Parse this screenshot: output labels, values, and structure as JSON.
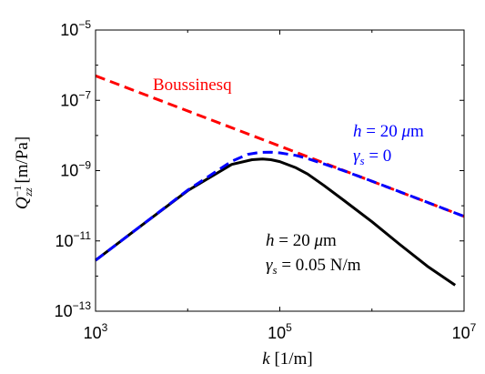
{
  "chart_data": {
    "type": "line",
    "xscale": "log",
    "yscale": "log",
    "xlim": [
      1000,
      10000000
    ],
    "ylim": [
      1e-13,
      1e-05
    ],
    "xticks": [
      {
        "value": 1000,
        "base": "10",
        "exp": "3"
      },
      {
        "value": 100000,
        "base": "10",
        "exp": "5"
      },
      {
        "value": 10000000,
        "base": "10",
        "exp": "7"
      }
    ],
    "yticks": [
      {
        "value": 1e-13,
        "base": "10",
        "exp": "−13"
      },
      {
        "value": 1e-11,
        "base": "10",
        "exp": "−11"
      },
      {
        "value": 1e-09,
        "base": "10",
        "exp": "−9"
      },
      {
        "value": 1e-07,
        "base": "10",
        "exp": "−7"
      },
      {
        "value": 1e-05,
        "base": "10",
        "exp": "−5"
      }
    ],
    "xlabel": {
      "var": "k",
      "unit": " [1/m]"
    },
    "ylabel": {
      "var": "Q",
      "sup": "−1",
      "sub": "zz",
      "unit": " [m/Pa]"
    },
    "grid": false,
    "series": [
      {
        "name": "Boussinesq",
        "color": "#ff0000",
        "style": "dashed",
        "x": [
          1000,
          10000000
        ],
        "y": [
          5e-07,
          5e-11
        ]
      },
      {
        "name": "",
        "color": "#0000ff",
        "style": "dashed",
        "x": [
          1000,
          3000,
          10000,
          30000,
          45000,
          60000,
          80000,
          100000,
          150000,
          200000,
          300000,
          500000,
          1000000,
          3000000,
          10000000
        ],
        "y": [
          2.8e-12,
          2.5e-11,
          2.8e-10,
          1.85e-09,
          2.9e-09,
          3.3e-09,
          3.35e-09,
          3.2e-09,
          2.7e-09,
          2.2e-09,
          1.55e-09,
          9.8e-10,
          5e-10,
          1.67e-10,
          5e-11
        ]
      },
      {
        "name": "",
        "color": "#000000",
        "style": "solid",
        "x": [
          1000,
          3000,
          10000,
          30000,
          50000,
          65000,
          80000,
          100000,
          150000,
          200000,
          300000,
          500000,
          1000000,
          2000000,
          4000000,
          8000000
        ],
        "y": [
          2.8e-12,
          2.5e-11,
          2.7e-10,
          1.5e-09,
          2.05e-09,
          2.15e-09,
          2.05e-09,
          1.8e-09,
          1.2e-09,
          8e-10,
          3.8e-10,
          1.4e-10,
          3.5e-11,
          8e-12,
          1.9e-12,
          5.5e-13
        ]
      }
    ],
    "annotations": {
      "boussinesq": {
        "text": "Boussinesq",
        "color": "#ff0000"
      },
      "blue_line1": {
        "var": "h",
        "rest": " = 20 ",
        "mu": "μ",
        "unit": "m",
        "color": "#0000ff"
      },
      "blue_line2": {
        "var": "γ",
        "sub": "s",
        "rest": " = 0",
        "color": "#0000ff"
      },
      "black_line1": {
        "var": "h",
        "rest": " = 20 ",
        "mu": "μ",
        "unit": "m",
        "color": "#000000"
      },
      "black_line2": {
        "var": "γ",
        "sub": "s",
        "rest": " = 0.05 N/m",
        "color": "#000000"
      }
    }
  }
}
